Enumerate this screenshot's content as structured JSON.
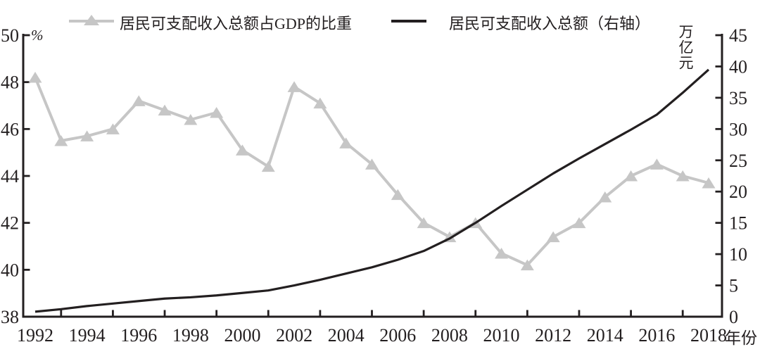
{
  "figure": {
    "legend": [
      {
        "label": "居民可支配收入总额占GDP的比重",
        "marker": "triangle-line",
        "color": "#c6c6c6"
      },
      {
        "label": "居民可支配收入总额（右轴）",
        "marker": "line",
        "color": "#231f20"
      }
    ],
    "left_axis_unit": "%",
    "right_axis_unit": "万亿元",
    "x_axis_title": "年份"
  },
  "chart_data": {
    "type": "line",
    "title": "",
    "grid": false,
    "legend_position": "top",
    "x": [
      1992,
      1993,
      1994,
      1995,
      1996,
      1997,
      1998,
      1999,
      2000,
      2001,
      2002,
      2003,
      2004,
      2005,
      2006,
      2007,
      2008,
      2009,
      2010,
      2011,
      2012,
      2013,
      2014,
      2015,
      2016,
      2017,
      2018
    ],
    "series": [
      {
        "name": "居民可支配收入总额占GDP的比重",
        "axis": "left",
        "unit": "%",
        "color": "#c6c6c6",
        "marker": "triangle",
        "values": [
          48.2,
          45.5,
          45.7,
          46.0,
          47.2,
          46.8,
          46.4,
          46.7,
          45.1,
          44.4,
          47.8,
          47.1,
          45.4,
          44.5,
          43.2,
          42.0,
          41.4,
          42.0,
          40.7,
          40.2,
          41.4,
          42.0,
          43.1,
          44.0,
          44.5,
          44.0,
          43.7
        ]
      },
      {
        "name": "居民可支配收入总额（右轴）",
        "axis": "right",
        "unit": "万亿元",
        "color": "#231f20",
        "marker": "none",
        "values": [
          0.8,
          1.2,
          1.7,
          2.1,
          2.5,
          2.9,
          3.1,
          3.4,
          3.8,
          4.2,
          5.0,
          5.9,
          6.9,
          7.9,
          9.1,
          10.5,
          12.5,
          15.0,
          17.7,
          20.3,
          22.9,
          25.3,
          27.6,
          29.9,
          32.3,
          35.8,
          39.5
        ]
      }
    ],
    "axes": {
      "left": {
        "unit": "%",
        "min": 38,
        "max": 50,
        "ticks": [
          50,
          48,
          46,
          44,
          42,
          40,
          38
        ]
      },
      "right": {
        "unit": "万亿元",
        "min": 0,
        "max": 45,
        "ticks": [
          45,
          40,
          35,
          30,
          25,
          20,
          15,
          10,
          5,
          0
        ]
      },
      "x": {
        "title": "年份",
        "labeled_years": [
          1992,
          1994,
          1996,
          1998,
          2000,
          2002,
          2004,
          2006,
          2008,
          2010,
          2012,
          2014,
          2016,
          2018
        ],
        "minor_tick_years": [
          1993,
          1995,
          1997,
          1999,
          2001,
          2003,
          2005,
          2007,
          2009,
          2011,
          2013,
          2015,
          2017
        ]
      }
    }
  }
}
